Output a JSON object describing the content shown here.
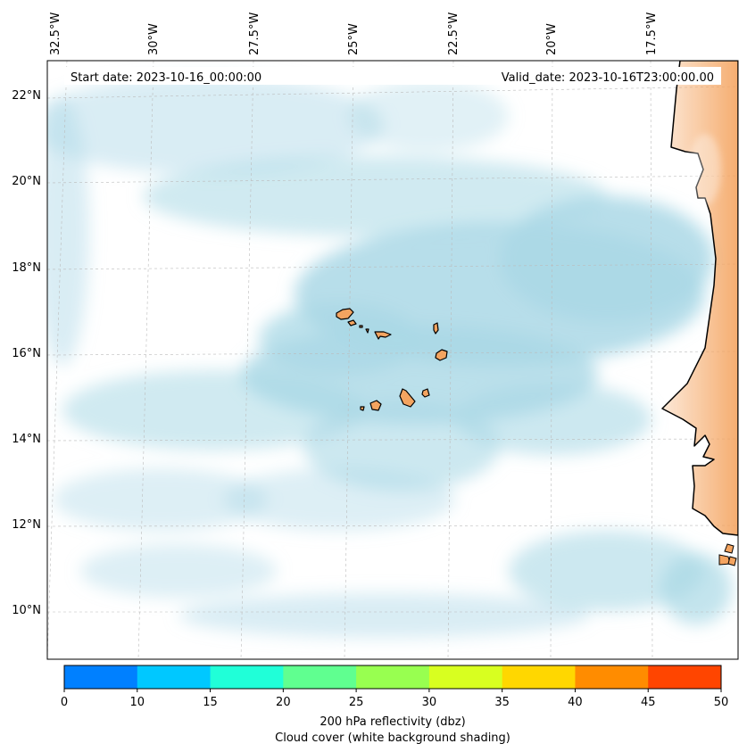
{
  "header": {
    "start_date": "Start date: 2023-10-16_00:00:00",
    "valid_date": "Valid_date: 2023-10-16T23:00:00.00"
  },
  "map": {
    "longitude_labels": [
      "32.5°W",
      "30°W",
      "27.5°W",
      "25°W",
      "22.5°W",
      "20°W",
      "17.5°W"
    ],
    "latitude_labels": [
      "22°N",
      "20°N",
      "18°N",
      "16°N",
      "14°N",
      "12°N",
      "10°N"
    ],
    "colors": {
      "cloud": "#aad8e6",
      "land": "#f4a460",
      "coast": "#000000",
      "grid": "#bbbbbb"
    }
  },
  "colorbar": {
    "ticks": [
      "0",
      "10",
      "15",
      "20",
      "25",
      "30",
      "35",
      "40",
      "45",
      "50"
    ],
    "colors": [
      "#0080ff",
      "#00c8ff",
      "#20ffd8",
      "#60ff90",
      "#98ff50",
      "#d8ff20",
      "#ffd700",
      "#ff8c00",
      "#ff4500"
    ],
    "label_line1": "200 hPa reflectivity (dbz)",
    "label_line2": "Cloud cover (white background shading)"
  }
}
